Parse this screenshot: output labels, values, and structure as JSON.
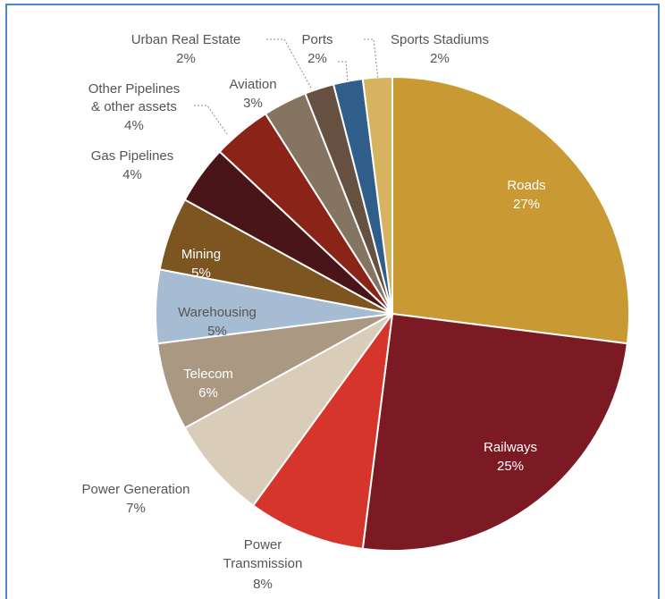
{
  "chart_data": {
    "type": "pie",
    "slices": [
      {
        "label": "Roads",
        "value": 27,
        "value_label": "27%",
        "color": "#C99A34"
      },
      {
        "label": "Railways",
        "value": 25,
        "value_label": "25%",
        "color": "#7B1A22"
      },
      {
        "label": "Power Transmission",
        "value": 8,
        "value_label": "8%",
        "color": "#D6352B"
      },
      {
        "label": "Power Generation",
        "value": 7,
        "value_label": "7%",
        "color": "#D9CCB8"
      },
      {
        "label": "Telecom",
        "value": 6,
        "value_label": "6%",
        "color": "#AA9883"
      },
      {
        "label": "Warehousing",
        "value": 5,
        "value_label": "5%",
        "color": "#A6BCD3"
      },
      {
        "label": "Mining",
        "value": 5,
        "value_label": "5%",
        "color": "#7C5520"
      },
      {
        "label": "Gas Pipelines",
        "value": 4,
        "value_label": "4%",
        "color": "#4A1518"
      },
      {
        "label": "Other Pipelines & other assets",
        "value": 4,
        "value_label": "4%",
        "color": "#8A2418"
      },
      {
        "label": "Aviation",
        "value": 3,
        "value_label": "3%",
        "color": "#857461"
      },
      {
        "label": "Urban Real Estate",
        "value": 2,
        "value_label": "2%",
        "color": "#655041"
      },
      {
        "label": "Ports",
        "value": 2,
        "value_label": "2%",
        "color": "#2F5E8B"
      },
      {
        "label": "Sports Stadiums",
        "value": 2,
        "value_label": "2%",
        "color": "#D6B35E"
      }
    ]
  }
}
